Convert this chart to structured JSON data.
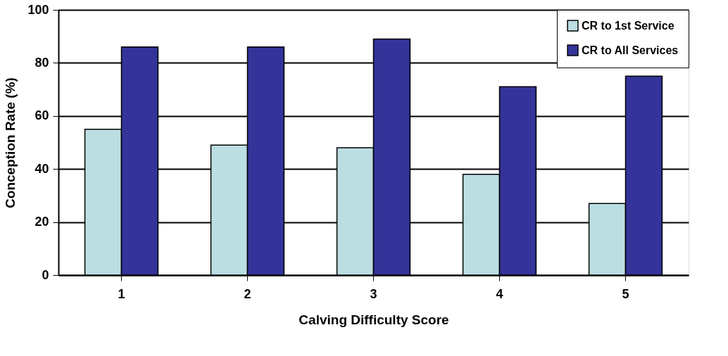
{
  "chart_data": {
    "type": "bar",
    "xlabel": "Calving Difficulty Score",
    "ylabel": "Conception Rate (%)",
    "categories": [
      "1",
      "2",
      "3",
      "4",
      "5"
    ],
    "series": [
      {
        "name": "CR to 1st Service",
        "color": "#bbdee3",
        "values": [
          55,
          49,
          48,
          38,
          27
        ]
      },
      {
        "name": "CR to All Services",
        "color": "#333399",
        "values": [
          86,
          86,
          89,
          71,
          75
        ]
      }
    ],
    "ylim": [
      0,
      100
    ],
    "yticks": [
      0,
      20,
      40,
      60,
      80,
      100
    ],
    "grid": "y",
    "legend": "top right"
  }
}
